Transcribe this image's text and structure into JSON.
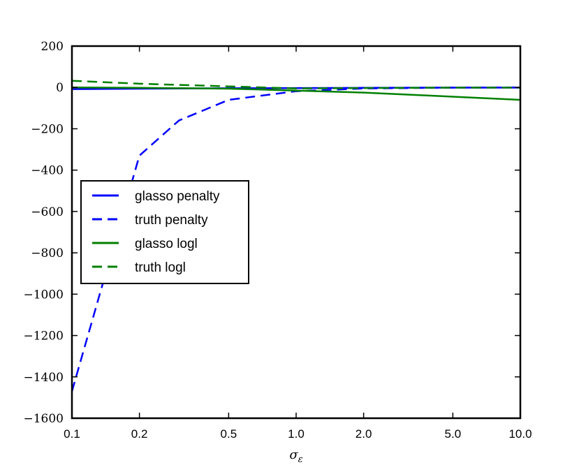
{
  "chart_data": {
    "type": "line",
    "title": "",
    "xlabel": "σ",
    "xlabel_subscript": "ε",
    "ylabel": "",
    "x_scale": "log",
    "x_ticks": [
      0.1,
      0.2,
      0.5,
      1.0,
      2.0,
      5.0,
      10.0
    ],
    "x_tick_labels": [
      "0.1",
      "0.2",
      "0.5",
      "1.0",
      "2.0",
      "5.0",
      "10.0"
    ],
    "xlim": [
      0.1,
      10.0
    ],
    "y_ticks": [
      200,
      0,
      -200,
      -400,
      -600,
      -800,
      -1000,
      -1200,
      -1400,
      -1600
    ],
    "y_tick_labels": [
      "200",
      "0",
      "−200",
      "−400",
      "−600",
      "−800",
      "−1000",
      "−1200",
      "−1400",
      "−1600"
    ],
    "ylim": [
      -1600,
      200
    ],
    "grid": false,
    "legend_position": "center-left",
    "series": [
      {
        "name": "glasso penalty",
        "color": "#0000ff",
        "style": "solid",
        "x": [
          0.1,
          0.2,
          0.5,
          1.0,
          2.0,
          5.0,
          10.0
        ],
        "y": [
          -8,
          -6,
          -4,
          -3,
          -2,
          -1,
          -1
        ]
      },
      {
        "name": "truth penalty",
        "color": "#0000ff",
        "style": "dashed",
        "x": [
          0.1,
          0.2,
          0.3,
          0.5,
          1.0,
          2.0,
          5.0,
          10.0
        ],
        "y": [
          -1470,
          -330,
          -160,
          -60,
          -18,
          -5,
          -1,
          0
        ]
      },
      {
        "name": "glasso logl",
        "color": "#008000",
        "style": "solid",
        "x": [
          0.1,
          0.2,
          0.5,
          1.0,
          2.0,
          5.0,
          10.0
        ],
        "y": [
          0,
          -2,
          -6,
          -15,
          -25,
          -45,
          -60
        ]
      },
      {
        "name": "truth logl",
        "color": "#008000",
        "style": "dashed",
        "x": [
          0.1,
          0.2,
          0.5,
          1.0,
          2.0,
          5.0,
          10.0
        ],
        "y": [
          32,
          18,
          5,
          -5,
          -3,
          -1,
          -1
        ]
      }
    ]
  }
}
